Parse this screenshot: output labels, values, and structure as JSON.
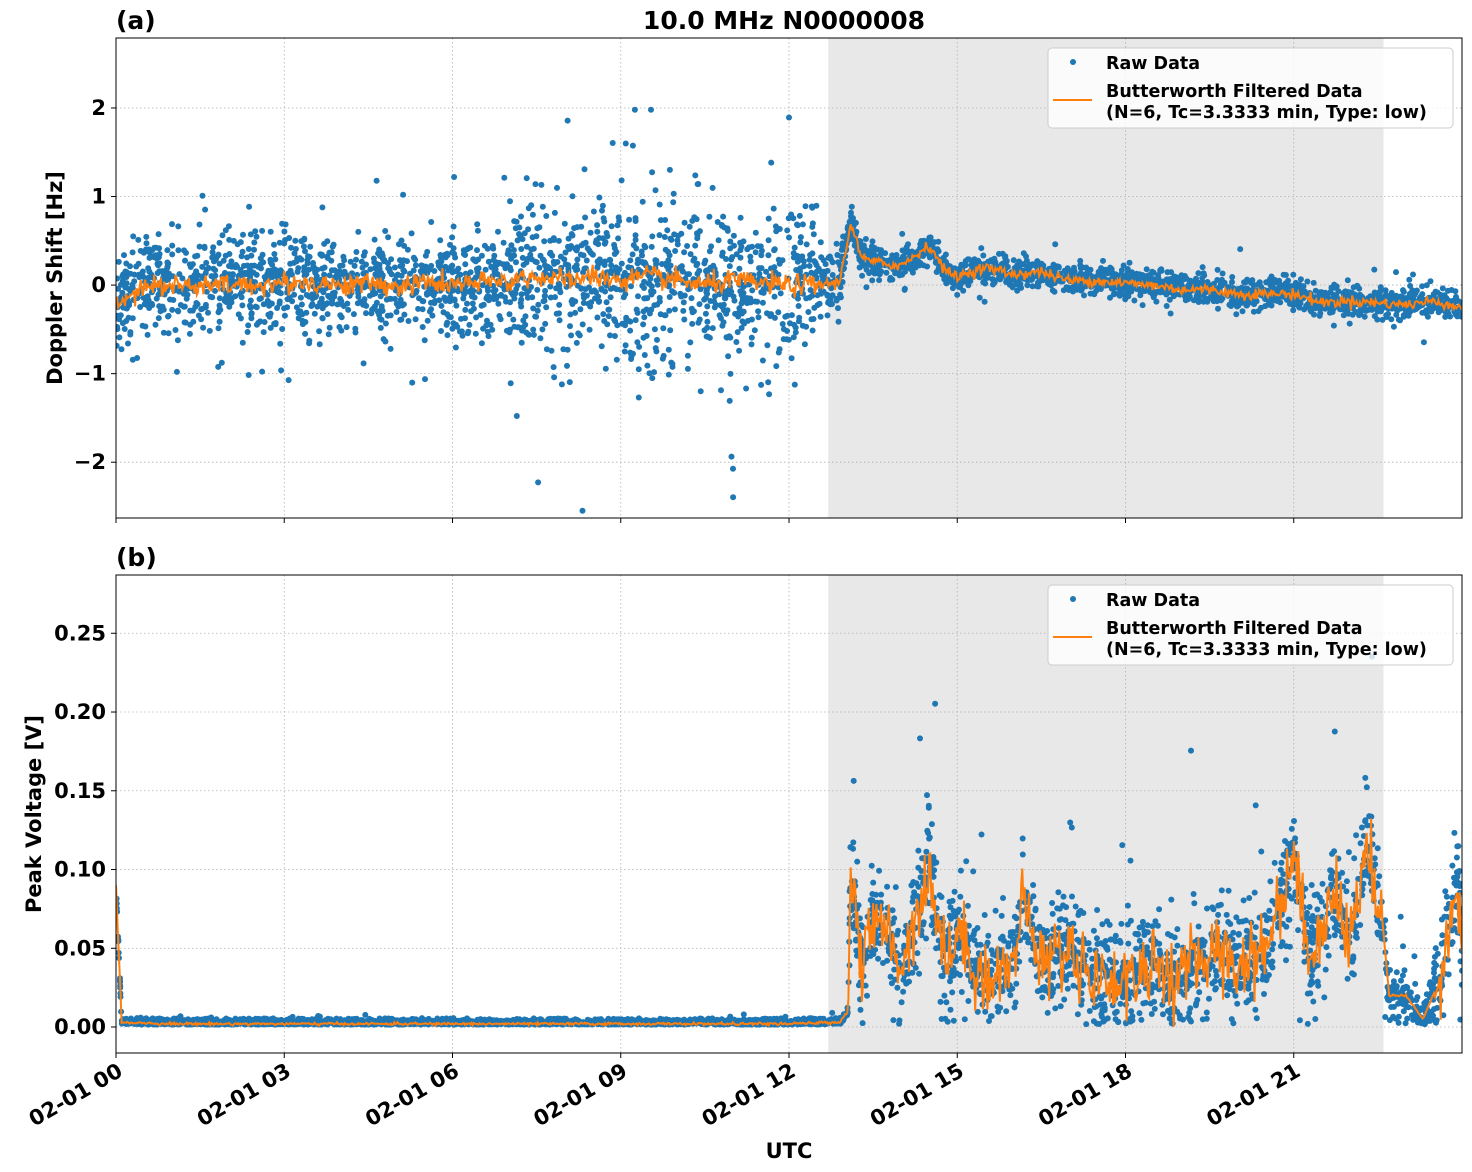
{
  "title": "10.0 MHz N0000008",
  "xlabel": "UTC",
  "x_tick_labels": [
    "02-01 00",
    "02-01 03",
    "02-01 06",
    "02-01 09",
    "02-01 12",
    "02-01 15",
    "02-01 18",
    "02-01 21"
  ],
  "colors": {
    "raw": "#1f77b4",
    "filtered": "#ff7f0e",
    "shade": "#e8e8e8",
    "grid": "#b0b0b0"
  },
  "chart_data": [
    {
      "type": "scatter",
      "panel_label": "(a)",
      "ylabel": "Doppler Shift [Hz]",
      "x_unit": "hours UTC on 02-01",
      "xlim": [
        0,
        24
      ],
      "ylim": [
        -2.63,
        2.79
      ],
      "x_ticks": [
        0,
        3,
        6,
        9,
        12,
        15,
        18,
        21
      ],
      "y_ticks": [
        -2,
        -1,
        0,
        1,
        2
      ],
      "y_tick_labels": [
        "−2",
        "−1",
        "0",
        "1",
        "2"
      ],
      "grid": true,
      "shaded_interval": [
        12.7,
        22.6
      ],
      "legend": {
        "placement": "top-right",
        "entries": [
          "Raw Data",
          "Butterworth Filtered Data",
          "(N=6, Tc=3.3333 min, Type: low)"
        ]
      },
      "filtered": {
        "x": [
          0,
          0.5,
          1,
          1.5,
          2,
          2.5,
          3,
          3.5,
          4,
          4.5,
          5,
          5.5,
          6,
          6.5,
          7,
          7.5,
          8,
          8.5,
          9,
          9.5,
          10,
          10.5,
          11,
          11.5,
          12,
          12.5,
          12.9,
          13.1,
          13.3,
          13.6,
          14,
          14.5,
          14.8,
          15,
          15.5,
          16,
          16.5,
          17,
          17.5,
          18,
          18.5,
          19,
          19.5,
          20,
          20.5,
          21,
          21.5,
          22,
          22.5,
          23,
          23.5,
          24
        ],
        "y": [
          -0.2,
          0,
          0,
          -0.02,
          0,
          0,
          0.02,
          0.03,
          0,
          0.02,
          -0.02,
          0.03,
          0,
          0.02,
          0.05,
          0.1,
          0.05,
          0.1,
          0.05,
          0.1,
          0.05,
          0,
          0.05,
          0.02,
          0,
          0,
          0.03,
          0.7,
          0.3,
          0.25,
          0.22,
          0.45,
          0.15,
          0.1,
          0.2,
          0.12,
          0.15,
          0.05,
          0.05,
          0.02,
          0,
          -0.05,
          -0.05,
          -0.1,
          -0.1,
          -0.1,
          -0.2,
          -0.18,
          -0.2,
          -0.22,
          -0.18,
          -0.25
        ]
      },
      "raw_scatter": [
        {
          "from": 0,
          "to": 7,
          "spread": 0.45,
          "outlier": 1.2
        },
        {
          "from": 7,
          "to": 12.5,
          "spread": 0.75,
          "outlier": 2.2
        },
        {
          "from": 12.5,
          "to": 13,
          "spread": 0.3,
          "outlier": 0.5
        },
        {
          "from": 13,
          "to": 24,
          "spread": 0.14,
          "outlier": 0.3
        }
      ]
    },
    {
      "type": "scatter",
      "panel_label": "(b)",
      "ylabel": "Peak Voltage [V]",
      "x_unit": "hours UTC on 02-01",
      "xlim": [
        0,
        24
      ],
      "ylim": [
        -0.0165,
        0.287
      ],
      "x_ticks": [
        0,
        3,
        6,
        9,
        12,
        15,
        18,
        21
      ],
      "y_ticks": [
        0,
        0.05,
        0.1,
        0.15,
        0.2,
        0.25
      ],
      "y_tick_labels": [
        "0.00",
        "0.05",
        "0.10",
        "0.15",
        "0.20",
        "0.25"
      ],
      "grid": true,
      "shaded_interval": [
        12.7,
        22.6
      ],
      "legend": {
        "placement": "top-right",
        "entries": [
          "Raw Data",
          "Butterworth Filtered Data",
          "(N=6, Tc=3.3333 min, Type: low)"
        ]
      },
      "filtered": {
        "x": [
          0,
          0.1,
          1,
          3,
          6,
          9,
          12,
          12.9,
          13.05,
          13.1,
          13.3,
          13.6,
          14,
          14.5,
          14.8,
          15,
          15.5,
          16,
          16.2,
          16.5,
          17,
          17.5,
          18,
          18.5,
          19,
          19.5,
          20,
          20.5,
          21,
          21.3,
          21.7,
          22,
          22.3,
          22.6,
          22.7,
          23,
          23.3,
          23.6,
          23.9,
          24
        ],
        "y": [
          0.09,
          0.003,
          0.002,
          0.002,
          0.002,
          0.002,
          0.002,
          0.003,
          0.01,
          0.1,
          0.04,
          0.07,
          0.04,
          0.1,
          0.04,
          0.06,
          0.03,
          0.04,
          0.08,
          0.04,
          0.05,
          0.03,
          0.03,
          0.04,
          0.03,
          0.05,
          0.04,
          0.05,
          0.11,
          0.04,
          0.09,
          0.05,
          0.12,
          0.06,
          0.02,
          0.02,
          0.005,
          0.03,
          0.09,
          0.05
        ]
      },
      "raw_scatter": [
        {
          "from": 0,
          "to": 13.05,
          "spread": 0.002,
          "outlier": 0.005
        },
        {
          "from": 13.05,
          "to": 22.6,
          "spread": 0.028,
          "outlier": 0.12
        },
        {
          "from": 22.6,
          "to": 23.5,
          "spread": 0.012,
          "outlier": 0.05
        },
        {
          "from": 23.5,
          "to": 24,
          "spread": 0.03,
          "outlier": 0.08
        }
      ]
    }
  ]
}
